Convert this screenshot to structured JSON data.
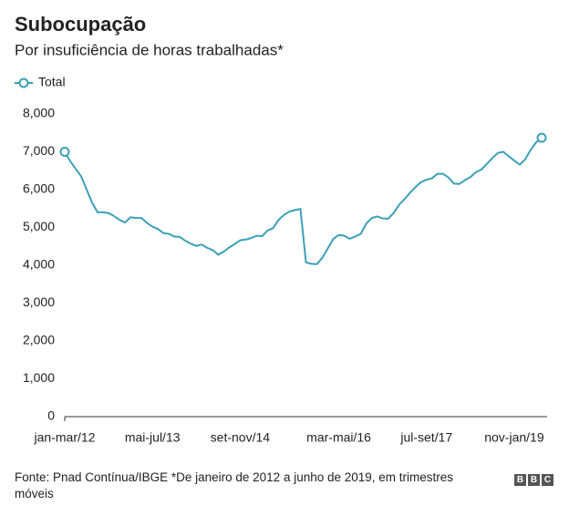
{
  "chart_data": {
    "type": "line",
    "title": "Subocupação",
    "subtitle": "Por insuficiência de horas trabalhadas*",
    "categories": [
      "jan-mar/12",
      null,
      null,
      null,
      null,
      null,
      null,
      null,
      null,
      null,
      null,
      null,
      null,
      null,
      null,
      null,
      "mai-jul/13",
      null,
      null,
      null,
      null,
      null,
      null,
      null,
      null,
      null,
      null,
      null,
      null,
      null,
      null,
      null,
      "set-nov/14",
      null,
      null,
      null,
      null,
      null,
      null,
      null,
      null,
      null,
      null,
      null,
      null,
      null,
      null,
      null,
      null,
      null,
      "mar-mai/16",
      null,
      null,
      null,
      null,
      null,
      null,
      null,
      null,
      null,
      null,
      null,
      null,
      null,
      null,
      null,
      "jul-set/17",
      null,
      null,
      null,
      null,
      null,
      null,
      null,
      null,
      null,
      null,
      null,
      null,
      null,
      null,
      null,
      "nov-jan/19",
      null,
      null,
      null,
      null,
      null
    ],
    "series": [
      {
        "name": "Total",
        "color": "#3ca0b8",
        "values": [
          7000,
          6750,
          6550,
          6350,
          6000,
          5650,
          5400,
          5400,
          5380,
          5300,
          5200,
          5130,
          5270,
          5250,
          5250,
          5120,
          5020,
          4960,
          4850,
          4830,
          4760,
          4750,
          4650,
          4570,
          4510,
          4550,
          4460,
          4400,
          4280,
          4360,
          4470,
          4560,
          4660,
          4680,
          4720,
          4780,
          4770,
          4920,
          4980,
          5200,
          5330,
          5420,
          5460,
          5490,
          4080,
          4040,
          4030,
          4200,
          4450,
          4700,
          4800,
          4780,
          4700,
          4760,
          4830,
          5100,
          5250,
          5290,
          5240,
          5230,
          5380,
          5600,
          5750,
          5920,
          6070,
          6200,
          6260,
          6300,
          6420,
          6420,
          6320,
          6160,
          6150,
          6250,
          6330,
          6460,
          6530,
          6680,
          6830,
          6970,
          7000,
          6880,
          6770,
          6660,
          6800,
          7050,
          7250,
          7370
        ]
      }
    ],
    "ylim": [
      0,
      8000
    ],
    "yticks": [
      0,
      {
        "value": 1000,
        "label": "1,000"
      },
      {
        "value": 2000,
        "label": "2,000"
      },
      {
        "value": 3000,
        "label": "3,000"
      },
      {
        "value": 4000,
        "label": "4,000"
      },
      {
        "value": 5000,
        "label": "5,000"
      },
      {
        "value": 6000,
        "label": "6,000"
      },
      {
        "value": 7000,
        "label": "7,000"
      },
      {
        "value": 8000,
        "label": "8,000"
      }
    ],
    "grid": false,
    "footer": "Fonte: Pnad Contínua/IBGE *De janeiro de 2012 a junho de 2019, em trimestres móveis",
    "logo": "BBC"
  }
}
